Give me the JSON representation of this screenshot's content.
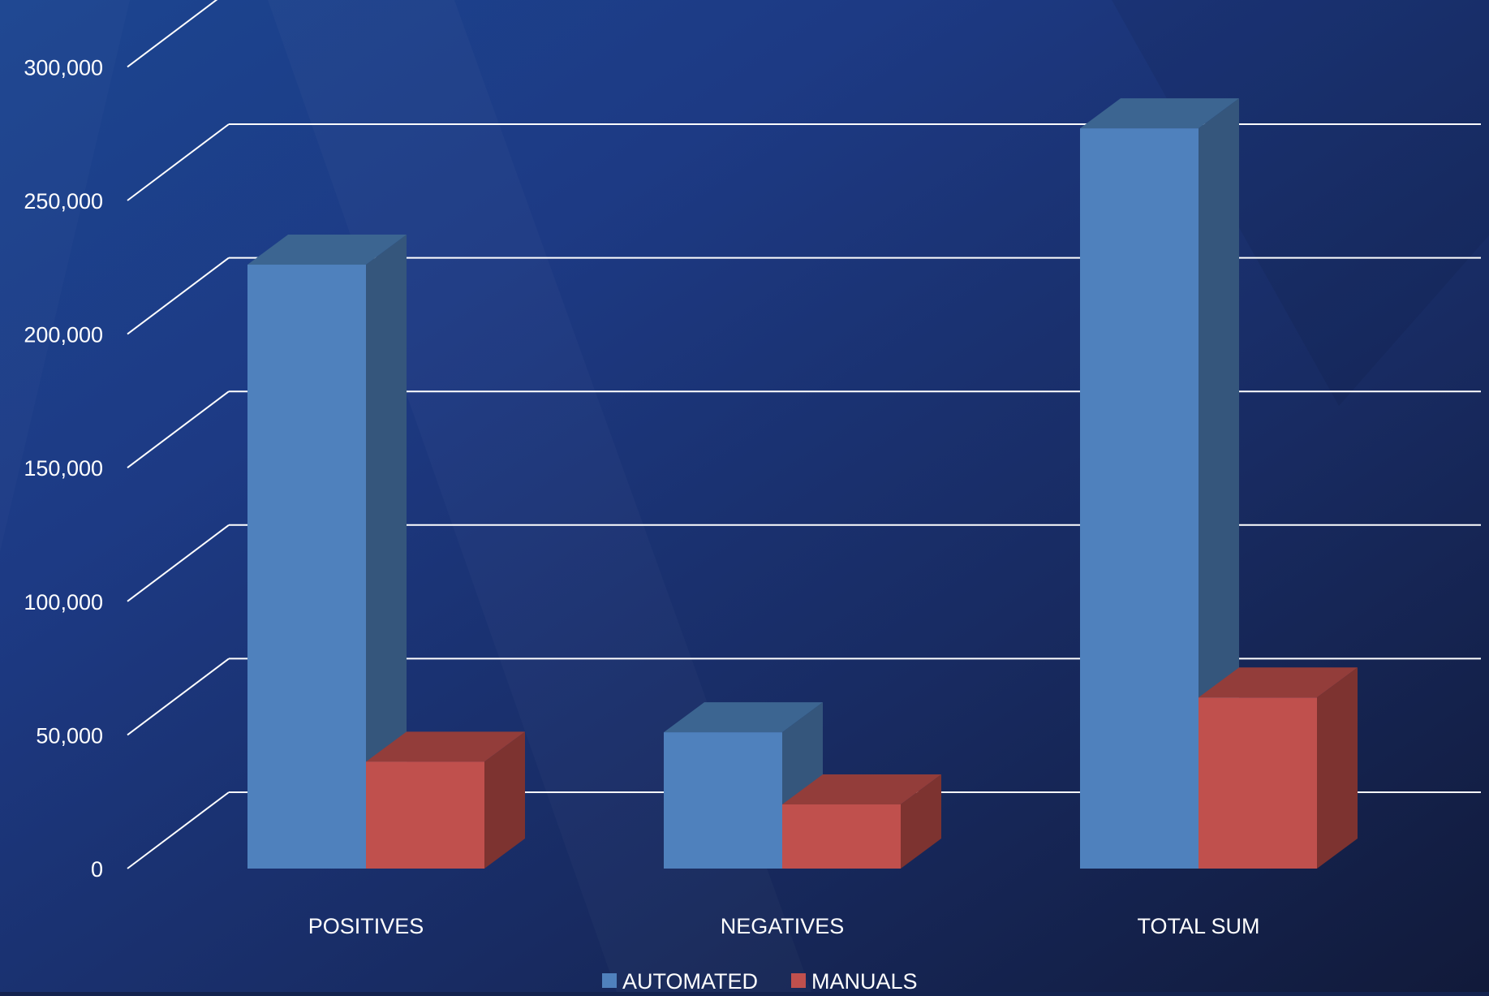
{
  "chart_data": {
    "type": "bar",
    "categories": [
      "POSITIVES",
      "NEGATIVES",
      "TOTAL SUM"
    ],
    "series": [
      {
        "name": "AUTOMATED",
        "values": [
          226000,
          51000,
          277000
        ]
      },
      {
        "name": "MANUALS",
        "values": [
          40000,
          24000,
          64000
        ]
      }
    ],
    "ylim": [
      0,
      300000
    ],
    "yticks": [
      "0",
      "50,000",
      "100,000",
      "150,000",
      "200,000",
      "250,000",
      "300,000"
    ],
    "grid": true,
    "legend": "bottom-center",
    "colors": {
      "AUTOMATED": {
        "front": "#4f81bd",
        "top": "#3c6591",
        "side": "#35567c"
      },
      "MANUALS": {
        "front": "#c0504d",
        "top": "#933d3a",
        "side": "#7d3330"
      },
      "grid": "#ffffff",
      "text": "#ffffff"
    }
  }
}
